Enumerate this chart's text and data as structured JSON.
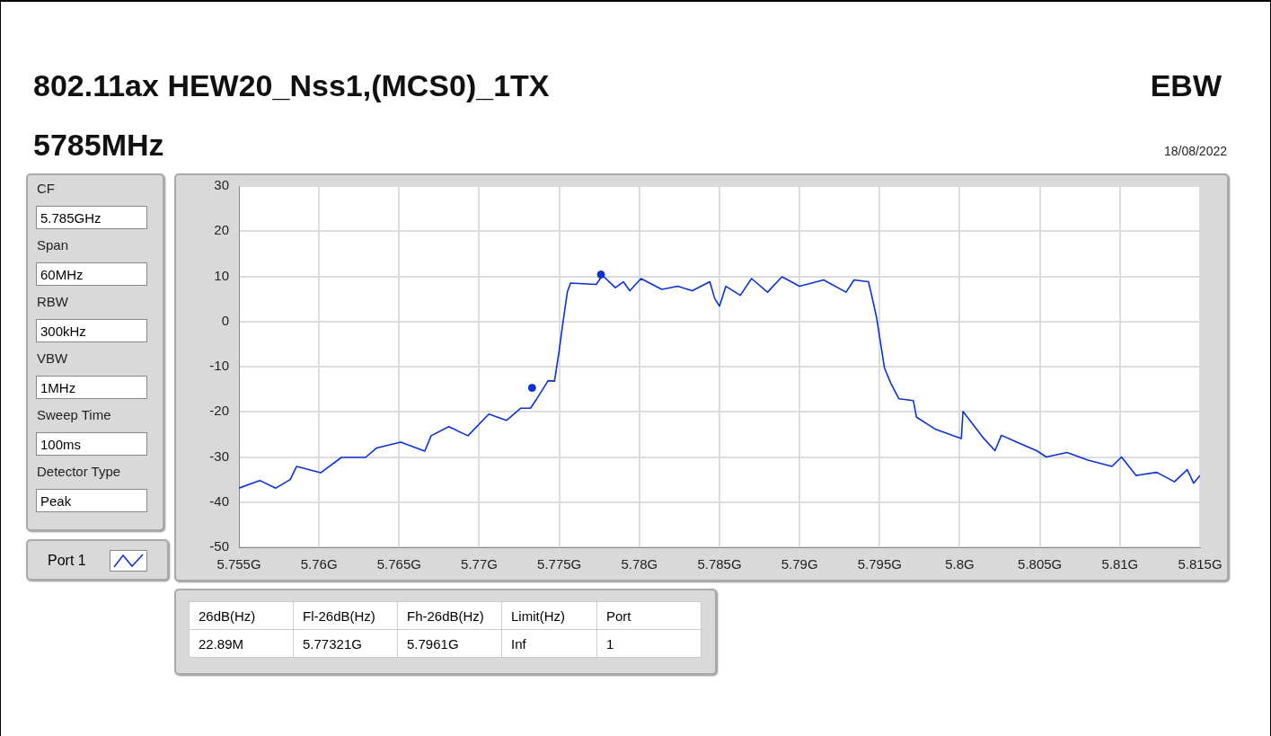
{
  "chart_data": {
    "type": "line",
    "title": "802.11ax HEW20_Nss1,(MCS0)_1TX",
    "subtitle": "5785MHz",
    "annotations": [
      "EBW",
      "18/08/2022",
      "CF",
      "5.785GHz",
      "Span",
      "60MHz",
      "RBW",
      "300kHz",
      "VBW",
      "1MHz",
      "Sweep Time",
      "100ms",
      "Detector Type",
      "Peak",
      "26dB(Hz)",
      "Fl-26dB(Hz)",
      "Fh-26dB(Hz)",
      "Limit(Hz)",
      "Port",
      "22.89M",
      "5.77321G",
      "5.7961G",
      "Inf",
      "1"
    ],
    "xlim": [
      5.755,
      5.815
    ],
    "xticks": [
      {
        "value": 5.755,
        "label": "5.755G"
      },
      {
        "value": 5.76,
        "label": "5.76G"
      },
      {
        "value": 5.765,
        "label": "5.765G"
      },
      {
        "value": 5.77,
        "label": "5.77G"
      },
      {
        "value": 5.775,
        "label": "5.775G"
      },
      {
        "value": 5.78,
        "label": "5.78G"
      },
      {
        "value": 5.785,
        "label": "5.785G"
      },
      {
        "value": 5.79,
        "label": "5.79G"
      },
      {
        "value": 5.795,
        "label": "5.795G"
      },
      {
        "value": 5.8,
        "label": "5.8G"
      },
      {
        "value": 5.805,
        "label": "5.805G"
      },
      {
        "value": 5.81,
        "label": "5.81G"
      },
      {
        "value": 5.815,
        "label": "5.815G"
      }
    ],
    "ylim": [
      -50,
      30
    ],
    "yticks": [
      -50,
      -40,
      -30,
      -20,
      -10,
      0,
      10,
      20,
      30
    ],
    "grid": true,
    "legend": "left",
    "marker": "none",
    "line_style": "solid",
    "series": [
      {
        "name": "Port 1",
        "color": "#0a32d2",
        "x": [
          5.755,
          5.7563,
          5.7573,
          5.7582,
          5.7586,
          5.7601,
          5.7614,
          5.7629,
          5.7636,
          5.7651,
          5.7666,
          5.767,
          5.7681,
          5.7693,
          5.7706,
          5.7717,
          5.7726,
          5.7732,
          5.7736,
          5.7743,
          5.7747,
          5.775,
          5.7752,
          5.7755,
          5.7757,
          5.7773,
          5.7777,
          5.7785,
          5.779,
          5.7794,
          5.7801,
          5.7814,
          5.7824,
          5.7833,
          5.7844,
          5.7847,
          5.785,
          5.7854,
          5.7863,
          5.787,
          5.788,
          5.7889,
          5.79,
          5.7915,
          5.7929,
          5.7934,
          5.7943,
          5.7945,
          5.7948,
          5.7951,
          5.7953,
          5.7957,
          5.7962,
          5.7971,
          5.7973,
          5.7985,
          5.8001,
          5.8002,
          5.8015,
          5.8022,
          5.8026,
          5.8035,
          5.8048,
          5.8054,
          5.8067,
          5.808,
          5.8095,
          5.8101,
          5.811,
          5.8123,
          5.8134,
          5.8142,
          5.8146,
          5.815
        ],
        "values": [
          -36.9,
          -35.2,
          -36.9,
          -35.0,
          -32.1,
          -33.5,
          -30.1,
          -30.1,
          -28.0,
          -26.7,
          -28.7,
          -25.3,
          -23.3,
          -25.3,
          -20.5,
          -21.9,
          -19.2,
          -19.2,
          -17.1,
          -13.1,
          -13.2,
          -6.3,
          -0.9,
          6.5,
          8.5,
          8.2,
          10.2,
          7.5,
          8.8,
          6.8,
          9.5,
          7.1,
          7.8,
          6.8,
          8.8,
          5.1,
          3.4,
          7.8,
          5.8,
          9.5,
          6.5,
          9.9,
          7.8,
          9.2,
          6.5,
          9.2,
          8.8,
          5.8,
          1.0,
          -5.8,
          -10.3,
          -13.7,
          -17.1,
          -17.5,
          -21.2,
          -23.9,
          -25.9,
          -19.9,
          -25.9,
          -28.6,
          -25.2,
          -26.6,
          -28.6,
          -30.0,
          -29.0,
          -30.7,
          -32.1,
          -30.0,
          -34.1,
          -33.4,
          -35.5,
          -32.8,
          -35.8,
          -34.1
        ]
      },
      {
        "type": "scatter",
        "color": "#0a32d2",
        "marker": "circle",
        "x": [
          5.7733,
          5.7776
        ],
        "values": [
          -14.7,
          10.4
        ]
      }
    ]
  }
}
